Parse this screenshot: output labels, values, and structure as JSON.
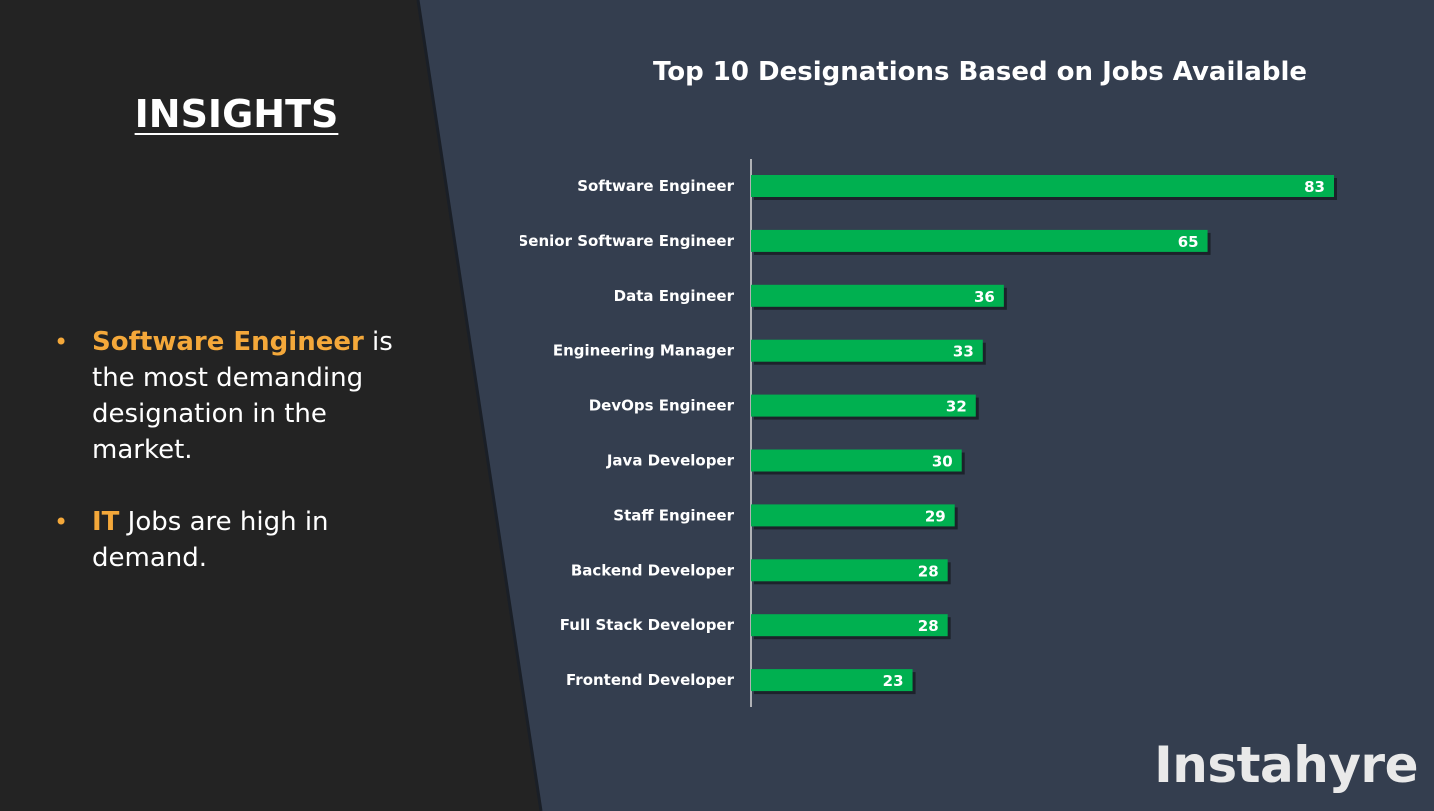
{
  "insights": {
    "title": "INSIGHTS",
    "bullets": [
      {
        "highlight": "Software Engineer",
        "text": " is the most demanding designation in the market."
      },
      {
        "highlight": "IT",
        "text": " Jobs are high in demand."
      }
    ]
  },
  "brand": "Instahyre",
  "colors": {
    "left_panel": "#232323",
    "right_panel": "#343e4f",
    "bar": "#00b050",
    "highlight": "#f4a83a",
    "text": "#ffffff"
  },
  "chart_data": {
    "type": "bar",
    "orientation": "horizontal",
    "title": "Top 10 Designations Based on Jobs Available",
    "categories": [
      "Software Engineer",
      "Senior Software Engineer",
      "Data Engineer",
      "Engineering Manager",
      "DevOps Engineer",
      "Java Developer",
      "Staff Engineer",
      "Backend Developer",
      "Full Stack Developer",
      "Frontend Developer"
    ],
    "values": [
      83,
      65,
      36,
      33,
      32,
      30,
      29,
      28,
      28,
      23
    ],
    "xlabel": "",
    "ylabel": "",
    "data_labels": true,
    "grid": false
  }
}
